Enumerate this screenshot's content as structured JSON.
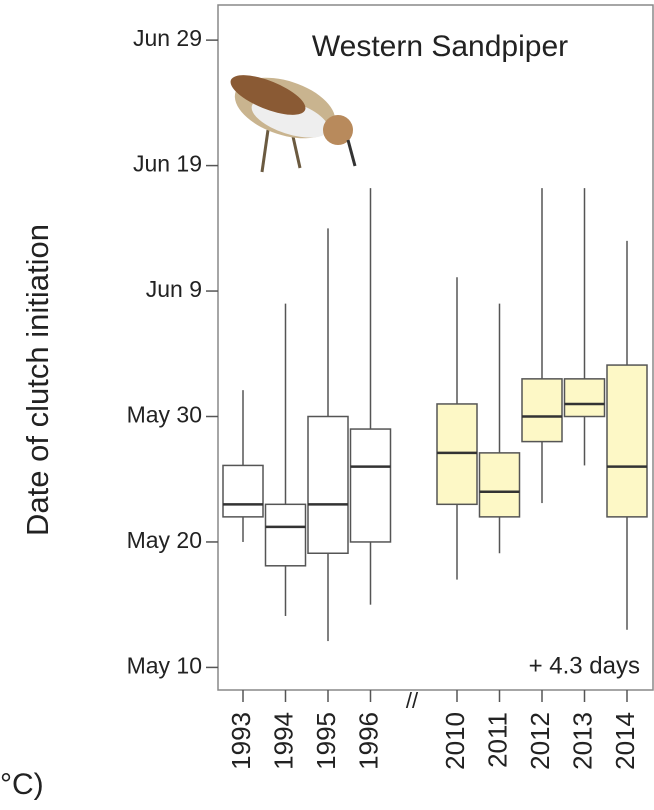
{
  "chart_data": {
    "type": "box",
    "title": "Western Sandpiper",
    "y_label": "Date of clutch initiation",
    "annotation": "+ 4.3 days",
    "break_mark": "//",
    "fragment": "°C)",
    "categories": [
      "1993",
      "1994",
      "1995",
      "1996",
      "2010",
      "2011",
      "2012",
      "2013",
      "2014"
    ],
    "colors": [
      "#ffffff",
      "#ffffff",
      "#ffffff",
      "#ffffff",
      "#fdf8c6",
      "#fdf8c6",
      "#fdf8c6",
      "#fdf8c6",
      "#fdf8c6"
    ],
    "whisker_low": [
      140.0,
      134.1,
      132.1,
      135.0,
      137.0,
      139.1,
      143.1,
      146.1,
      133.0
    ],
    "q1": [
      142.0,
      138.1,
      139.1,
      140.0,
      143.0,
      142.0,
      148.0,
      150.0,
      142.0
    ],
    "median": [
      143.0,
      141.2,
      143.0,
      146.0,
      147.1,
      144.0,
      150.0,
      151.0,
      146.0
    ],
    "q3": [
      146.1,
      143.0,
      150.0,
      149.0,
      151.0,
      147.1,
      153.0,
      153.0,
      154.1
    ],
    "whisker_high": [
      152.1,
      159.0,
      165.0,
      168.2,
      161.1,
      159.0,
      168.2,
      168.2,
      164.0
    ],
    "ylim": [
      128.2,
      182.8
    ],
    "yticks": [
      {
        "value": 130,
        "label": "May 10"
      },
      {
        "value": 140,
        "label": "May 20"
      },
      {
        "value": 150,
        "label": "May 30"
      },
      {
        "value": 160,
        "label": "Jun 9"
      },
      {
        "value": 170,
        "label": "Jun 19"
      },
      {
        "value": 180,
        "label": "Jun 29"
      }
    ]
  }
}
